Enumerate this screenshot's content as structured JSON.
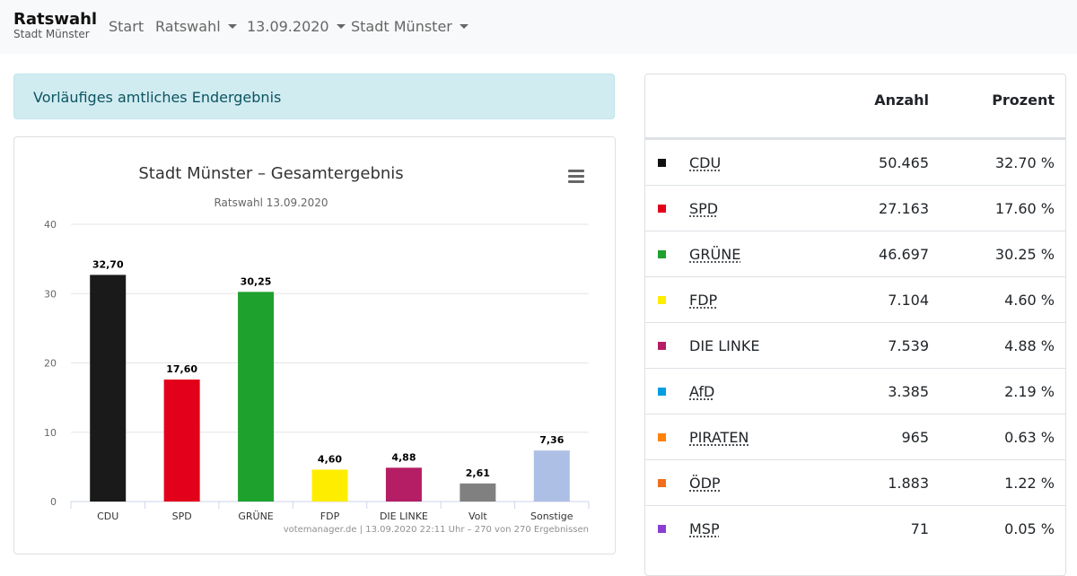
{
  "navbar": {
    "brand_title": "Ratswahl",
    "brand_subtitle": "Stadt Münster",
    "items": [
      {
        "label": "Start"
      },
      {
        "label": "Ratswahl"
      },
      {
        "label": "13.09.2020"
      },
      {
        "label": "Stadt Münster"
      }
    ]
  },
  "alert": {
    "text": "Vorläufiges amtliches Endergebnis"
  },
  "chart_data": {
    "type": "bar",
    "title": "Stadt Münster – Gesamtergebnis",
    "subtitle": "Ratswahl 13.09.2020",
    "categories": [
      "CDU",
      "SPD",
      "GRÜNE",
      "FDP",
      "DIE LINKE",
      "Volt",
      "Sonstige"
    ],
    "values": [
      32.7,
      17.6,
      30.25,
      4.6,
      4.88,
      2.61,
      7.36
    ],
    "value_labels": [
      "32,70",
      "17,60",
      "30,25",
      "4,60",
      "4,88",
      "2,61",
      "7,36"
    ],
    "colors": [
      "#1a1a1a",
      "#e3001b",
      "#1fa12e",
      "#ffed00",
      "#b51e64",
      "#808080",
      "#aebfe6"
    ],
    "ylim": [
      0,
      40
    ],
    "yticks": [
      0,
      10,
      20,
      30,
      40
    ],
    "xlabel": "",
    "ylabel": "",
    "credits": "votemanager.de | 13.09.2020 22:11 Uhr – 270 von 270 Ergebnissen",
    "grid": true,
    "legend": "none"
  },
  "table": {
    "headers": {
      "party": "",
      "count": "Anzahl",
      "percent": "Prozent"
    },
    "rows": [
      {
        "party": "CDU",
        "count": "50.465",
        "percent": "32.70 %",
        "color": "#111111",
        "abbr": true
      },
      {
        "party": "SPD",
        "count": "27.163",
        "percent": "17.60 %",
        "color": "#e3001b",
        "abbr": true
      },
      {
        "party": "GRÜNE",
        "count": "46.697",
        "percent": "30.25 %",
        "color": "#1fa12e",
        "abbr": true
      },
      {
        "party": "FDP",
        "count": "7.104",
        "percent": "4.60 %",
        "color": "#ffed00",
        "abbr": true
      },
      {
        "party": "DIE LINKE",
        "count": "7.539",
        "percent": "4.88 %",
        "color": "#b51e64",
        "abbr": false
      },
      {
        "party": "AfD",
        "count": "3.385",
        "percent": "2.19 %",
        "color": "#009ee0",
        "abbr": true
      },
      {
        "party": "PIRATEN",
        "count": "965",
        "percent": "0.63 %",
        "color": "#ff820a",
        "abbr": true
      },
      {
        "party": "ÖDP",
        "count": "1.883",
        "percent": "1.22 %",
        "color": "#f06e1e",
        "abbr": true
      },
      {
        "party": "MSP",
        "count": "71",
        "percent": "0.05 %",
        "color": "#8a3fd1",
        "abbr": true
      }
    ]
  }
}
